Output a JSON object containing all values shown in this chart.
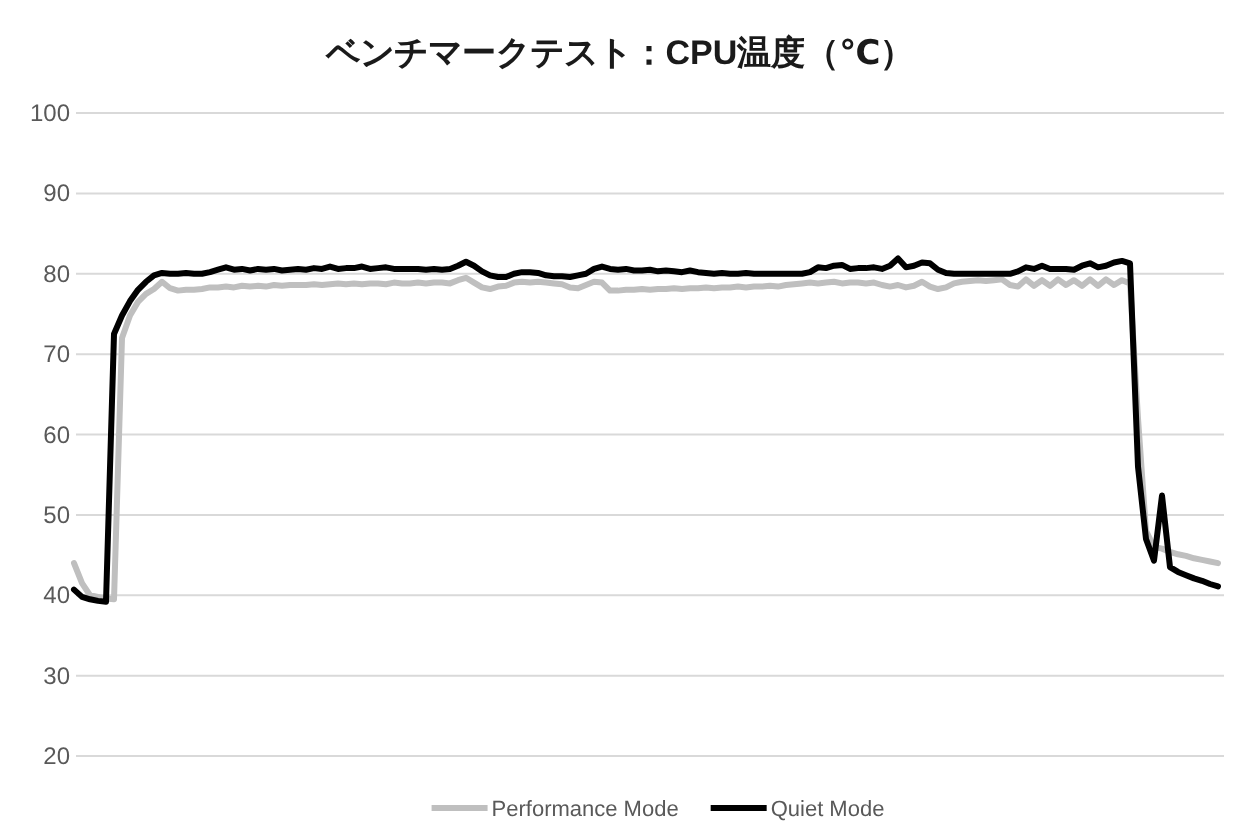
{
  "chart_data": {
    "type": "line",
    "title": "ベンチマークテスト：CPU温度（℃）",
    "categories": [
      null,
      null,
      null,
      null,
      null,
      null,
      null,
      null,
      null,
      null,
      null,
      null,
      null,
      null,
      null,
      null,
      null,
      null,
      null,
      null,
      null,
      null,
      null,
      null,
      null,
      null,
      null,
      null,
      null,
      null,
      null,
      null,
      null,
      null,
      null,
      null,
      null,
      null,
      null,
      null,
      null,
      null,
      null,
      null,
      null,
      null,
      null,
      null,
      null,
      null,
      null,
      null,
      null,
      null,
      null,
      null,
      null,
      null,
      null,
      null,
      null,
      null,
      null,
      null,
      null,
      null,
      null,
      null,
      null,
      null,
      null,
      null,
      null,
      null,
      null,
      null,
      null,
      null,
      null,
      null,
      null,
      null,
      null,
      null,
      null,
      null,
      null,
      null,
      null,
      null,
      null,
      null,
      null,
      null,
      null,
      null,
      null,
      null,
      null,
      null,
      null,
      null,
      null,
      null,
      null,
      null,
      null,
      null,
      null,
      null,
      null,
      null,
      null,
      null,
      null,
      null,
      null,
      null,
      null,
      null,
      null,
      null,
      null,
      null,
      null,
      null,
      null,
      null,
      null,
      null,
      null,
      null,
      null,
      null,
      null,
      null,
      null,
      null,
      null,
      null,
      null,
      null,
      null,
      null
    ],
    "series": [
      {
        "name": "Performance Mode",
        "color": "#bfbfbf",
        "values": [
          44.0,
          41.5,
          40.0,
          39.8,
          39.6,
          39.5,
          72.0,
          74.8,
          76.5,
          77.5,
          78.1,
          79.0,
          78.2,
          77.9,
          78.0,
          78.0,
          78.1,
          78.3,
          78.3,
          78.4,
          78.3,
          78.5,
          78.4,
          78.5,
          78.4,
          78.6,
          78.5,
          78.6,
          78.6,
          78.6,
          78.7,
          78.6,
          78.7,
          78.8,
          78.7,
          78.8,
          78.7,
          78.8,
          78.8,
          78.7,
          78.9,
          78.8,
          78.8,
          78.9,
          78.8,
          78.9,
          78.9,
          78.8,
          79.2,
          79.5,
          78.9,
          78.3,
          78.1,
          78.4,
          78.5,
          78.9,
          79.0,
          78.9,
          79.0,
          78.9,
          78.8,
          78.7,
          78.3,
          78.2,
          78.6,
          79.0,
          78.9,
          77.9,
          77.9,
          78.0,
          78.0,
          78.1,
          78.0,
          78.1,
          78.1,
          78.2,
          78.1,
          78.2,
          78.2,
          78.3,
          78.2,
          78.3,
          78.3,
          78.4,
          78.3,
          78.4,
          78.4,
          78.5,
          78.4,
          78.6,
          78.7,
          78.8,
          78.9,
          78.8,
          78.9,
          79.0,
          78.8,
          78.9,
          78.9,
          78.8,
          78.9,
          78.6,
          78.4,
          78.6,
          78.3,
          78.5,
          79.0,
          78.4,
          78.1,
          78.3,
          78.8,
          79.0,
          79.1,
          79.2,
          79.1,
          79.2,
          79.3,
          78.6,
          78.4,
          79.3,
          78.5,
          79.2,
          78.5,
          79.3,
          78.6,
          79.2,
          78.5,
          79.3,
          78.5,
          79.3,
          78.6,
          79.2,
          78.8,
          62,
          48,
          46.0,
          45.8,
          45.4,
          45.1,
          44.9,
          44.6,
          44.4,
          44.2,
          44.0
        ]
      },
      {
        "name": "Quiet Mode",
        "color": "#000000",
        "values": [
          40.7,
          39.8,
          39.5,
          39.3,
          39.2,
          72.5,
          74.8,
          76.6,
          78,
          79,
          79.8,
          80.1,
          80.0,
          80.0,
          80.1,
          80.0,
          80.0,
          80.2,
          80.5,
          80.8,
          80.5,
          80.6,
          80.4,
          80.6,
          80.5,
          80.6,
          80.4,
          80.5,
          80.6,
          80.5,
          80.7,
          80.6,
          80.9,
          80.6,
          80.7,
          80.7,
          80.9,
          80.6,
          80.7,
          80.8,
          80.6,
          80.6,
          80.6,
          80.6,
          80.5,
          80.6,
          80.5,
          80.6,
          81.0,
          81.5,
          81.0,
          80.3,
          79.8,
          79.6,
          79.6,
          80.0,
          80.2,
          80.2,
          80.1,
          79.8,
          79.7,
          79.7,
          79.6,
          79.8,
          80.0,
          80.6,
          80.9,
          80.6,
          80.5,
          80.6,
          80.4,
          80.4,
          80.5,
          80.3,
          80.4,
          80.3,
          80.2,
          80.4,
          80.2,
          80.1,
          80.0,
          80.1,
          80.0,
          80.0,
          80.1,
          80.0,
          80.0,
          80.0,
          80.0,
          80.0,
          80.0,
          80.0,
          80.2,
          80.8,
          80.7,
          81.0,
          81.1,
          80.6,
          80.7,
          80.7,
          80.8,
          80.6,
          81.0,
          81.9,
          80.8,
          81.0,
          81.4,
          81.3,
          80.5,
          80.1,
          80.0,
          80.0,
          80.0,
          80.0,
          80.0,
          80.0,
          80.0,
          80.0,
          80.3,
          80.8,
          80.6,
          81.0,
          80.6,
          80.6,
          80.6,
          80.5,
          81.0,
          81.3,
          80.8,
          81.0,
          81.4,
          81.6,
          81.3,
          56,
          47,
          44.3,
          52.4,
          43.5,
          42.9,
          42.5,
          42.1,
          41.8,
          41.4,
          41.1
        ]
      }
    ],
    "ylim": [
      20,
      100
    ],
    "yticks": [
      20,
      30,
      40,
      50,
      60,
      70,
      80,
      90,
      100
    ],
    "grid": "y",
    "legend": "bottom",
    "tick_labels": "y",
    "line_style": "solid"
  }
}
